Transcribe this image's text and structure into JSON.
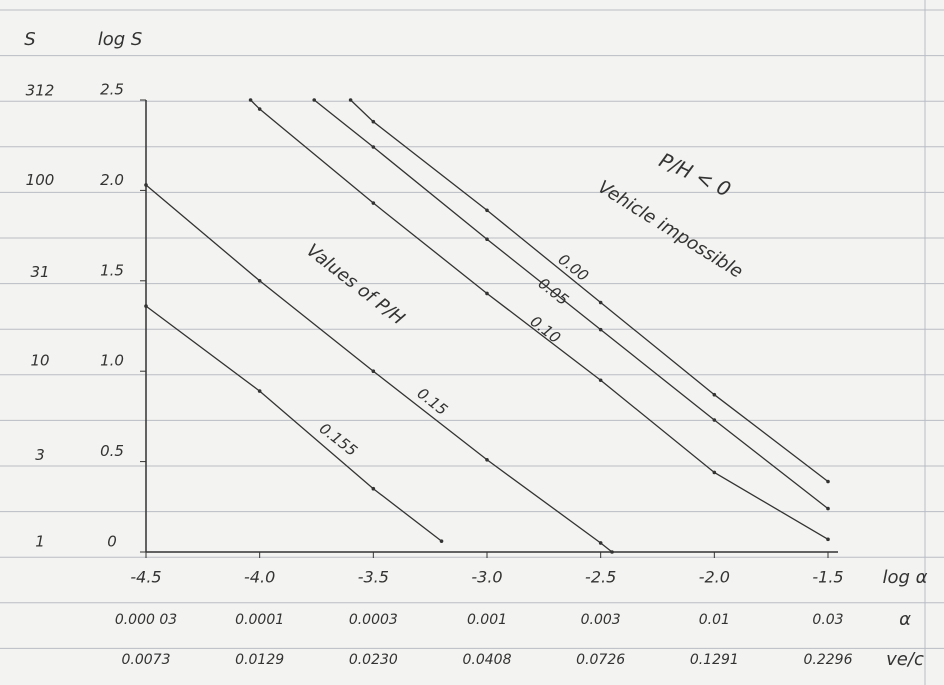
{
  "chart_data": {
    "type": "line",
    "y_axis_title": "log S",
    "y2_axis_title": "S",
    "x_axis_title": "log α",
    "xlim": [
      -4.5,
      -1.5
    ],
    "xticks": [
      -4.5,
      {
        "value": -4,
        "label": "-4.0"
      },
      -3.5,
      {
        "value": -3,
        "label": "-3.0"
      },
      -2.5,
      {
        "value": -2,
        "label": "-2.0"
      },
      -1.5
    ],
    "ylim": [
      0,
      2.5
    ],
    "yticks": [
      0,
      0.5,
      {
        "value": 1,
        "label": "1.0"
      },
      1.5,
      {
        "value": 2,
        "label": "2.0"
      },
      2.5
    ],
    "y2lim": [
      1,
      316.2
    ],
    "y2_log": true,
    "y2ticks": [
      1,
      3,
      10,
      31,
      100,
      312
    ],
    "alpha_row_title": "α",
    "alpha_row": [
      "0.000 03",
      "0.0001",
      "0.0003",
      "0.001",
      "0.003",
      "0.01",
      "0.03"
    ],
    "ve_row_title": "ve/c",
    "ve_row": [
      "0.0073",
      "0.0129",
      "0.0230",
      "0.0408",
      "0.0726",
      "0.1291",
      "0.2296"
    ],
    "annotations": [
      "P/H < 0",
      "Vehicle impossible",
      "Values of P/H"
    ],
    "color": "#333333",
    "series": [
      {
        "name": "0.00",
        "x": [
          -3.6,
          -3.5,
          -3.0,
          -2.5,
          -2.0,
          -1.5
        ],
        "values": [
          2.5,
          2.38,
          1.89,
          1.38,
          0.87,
          0.39
        ]
      },
      {
        "name": "0.05",
        "x": [
          -3.76,
          -3.5,
          -3.0,
          -2.5,
          -2.0,
          -1.5
        ],
        "values": [
          2.5,
          2.24,
          1.73,
          1.23,
          0.73,
          0.24
        ]
      },
      {
        "name": "0.10",
        "x": [
          -4.04,
          -4.0,
          -3.5,
          -3.0,
          -2.5,
          -2.0,
          -1.5
        ],
        "values": [
          2.5,
          2.45,
          1.93,
          1.43,
          0.95,
          0.44,
          0.07
        ]
      },
      {
        "name": "0.15",
        "x": [
          -4.5,
          -4.0,
          -3.5,
          -3.0,
          -2.5,
          -2.45
        ],
        "values": [
          2.03,
          1.5,
          1.0,
          0.51,
          0.05,
          0
        ]
      },
      {
        "name": "0.155",
        "x": [
          -4.5,
          -4.0,
          -3.5,
          -3.2
        ],
        "values": [
          1.36,
          0.89,
          0.35,
          0.06
        ]
      }
    ]
  }
}
